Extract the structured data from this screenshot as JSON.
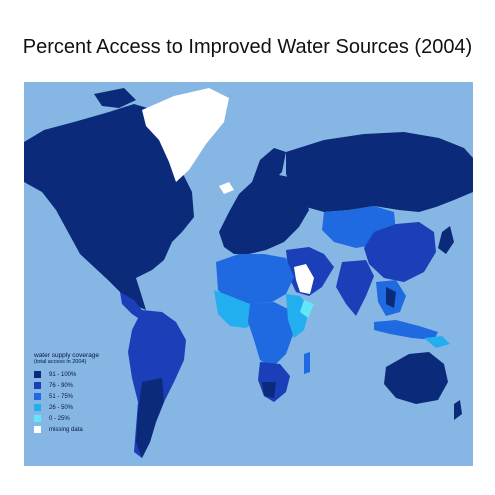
{
  "title": "Percent Access to Improved Water Sources (2004)",
  "colors": {
    "ocean": "#85b6e4",
    "missing": "#ffffff",
    "c91_100": "#0c2a7a",
    "c76_90": "#1a3fb8",
    "c51_75": "#1f6ae0",
    "c26_50": "#23aef0",
    "c0_25": "#63e7f8"
  },
  "legend": {
    "title": "water supply coverage",
    "subtitle": "(total access in 2004)",
    "items": [
      {
        "label": "91 - 100%",
        "color": "#0c2a7a"
      },
      {
        "label": "76 - 90%",
        "color": "#1a3fb8"
      },
      {
        "label": "51 - 75%",
        "color": "#1f6ae0"
      },
      {
        "label": "26 - 50%",
        "color": "#23aef0"
      },
      {
        "label": "0 - 25%",
        "color": "#63e7f8"
      },
      {
        "label": "missing data",
        "color": "#ffffff"
      }
    ]
  }
}
